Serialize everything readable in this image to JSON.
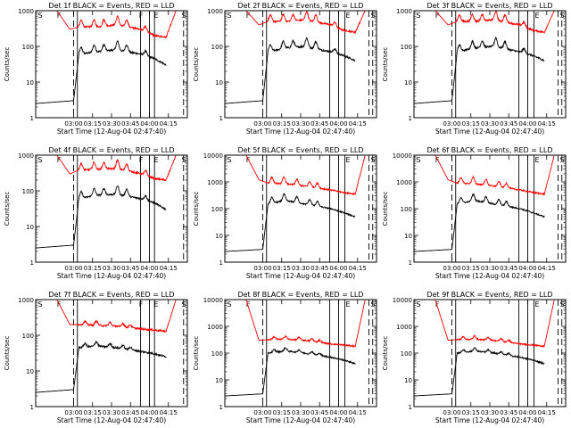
{
  "figure": {
    "ylabel": "Counts/sec",
    "xlabel": "Start Time (12-Aug-04 02:47:40)",
    "xticks": [
      "03:00",
      "03:15",
      "03:30",
      "03:45",
      "04:00",
      "04:15"
    ],
    "scale": "log",
    "colors": {
      "events": "#000000",
      "lld": "#ff0000",
      "axes": "#000000",
      "background": "#ffffff"
    }
  },
  "chart_data": [
    {
      "type": "line",
      "title": "Det 1f BLACK = Events, RED = LLD",
      "ylim": [
        1,
        1000
      ],
      "yticks": [
        "1",
        "10",
        "100",
        "1000"
      ],
      "flags": [
        "S",
        "F",
        "F",
        "E",
        "S"
      ],
      "markers": {
        "dashed": [
          "03:00",
          "04:27"
        ],
        "solid": [
          "03:03",
          "03:53",
          "04:00",
          "04:04"
        ]
      },
      "series": [
        {
          "name": "Events",
          "shape": "A",
          "values": [
            [
              2.5,
              2.5
            ],
            [
              3.0,
              3.0
            ],
            [
              3.07,
              60
            ],
            [
              3.3,
              70
            ],
            [
              3.55,
              80
            ],
            [
              3.9,
              60
            ],
            [
              4.07,
              45
            ],
            [
              4.22,
              30
            ]
          ]
        },
        {
          "name": "LLD",
          "shape": "A",
          "values": [
            [
              2.78,
              1000
            ],
            [
              2.95,
              300
            ],
            [
              3.07,
              350
            ],
            [
              3.3,
              350
            ],
            [
              3.55,
              400
            ],
            [
              3.9,
              300
            ],
            [
              4.07,
              200
            ],
            [
              4.22,
              180
            ],
            [
              4.35,
              1000
            ]
          ]
        }
      ]
    },
    {
      "type": "line",
      "title": "Det 2f BLACK = Events, RED = LLD",
      "ylim": [
        1,
        1000
      ],
      "yticks": [
        "1",
        "10",
        "100",
        "1000"
      ],
      "flags": [
        "S",
        "F",
        "E",
        "S"
      ],
      "markers": {
        "dashed": [
          "03:00",
          "04:24",
          "04:27"
        ],
        "solid": [
          "03:03",
          "03:53",
          "04:00",
          "04:05"
        ]
      },
      "series": [
        {
          "name": "Events",
          "shape": "A",
          "values": [
            [
              2.5,
              2.5
            ],
            [
              3.0,
              3.0
            ],
            [
              3.07,
              70
            ],
            [
              3.3,
              90
            ],
            [
              3.55,
              100
            ],
            [
              3.9,
              70
            ],
            [
              4.07,
              55
            ],
            [
              4.22,
              40
            ]
          ]
        },
        {
          "name": "LLD",
          "shape": "A",
          "values": [
            [
              2.78,
              1000
            ],
            [
              2.95,
              400
            ],
            [
              3.07,
              500
            ],
            [
              3.3,
              500
            ],
            [
              3.55,
              550
            ],
            [
              3.9,
              400
            ],
            [
              4.07,
              280
            ],
            [
              4.22,
              250
            ],
            [
              4.35,
              1000
            ]
          ]
        }
      ]
    },
    {
      "type": "line",
      "title": "Det 3f BLACK = Events, RED = LLD",
      "ylim": [
        1,
        1000
      ],
      "yticks": [
        "1",
        "10",
        "100",
        "1000"
      ],
      "flags": [
        "S",
        "F",
        "E",
        "S"
      ],
      "markers": {
        "dashed": [
          "03:00",
          "04:24",
          "04:27"
        ],
        "solid": [
          "03:03",
          "03:53",
          "04:00",
          "04:05"
        ]
      },
      "series": [
        {
          "name": "Events",
          "shape": "A",
          "values": [
            [
              2.5,
              2.5
            ],
            [
              3.0,
              3.0
            ],
            [
              3.07,
              70
            ],
            [
              3.3,
              90
            ],
            [
              3.55,
              100
            ],
            [
              3.9,
              70
            ],
            [
              4.07,
              55
            ],
            [
              4.22,
              40
            ]
          ]
        },
        {
          "name": "LLD",
          "shape": "A",
          "values": [
            [
              2.78,
              1000
            ],
            [
              2.95,
              400
            ],
            [
              3.07,
              500
            ],
            [
              3.3,
              500
            ],
            [
              3.55,
              550
            ],
            [
              3.9,
              400
            ],
            [
              4.07,
              280
            ],
            [
              4.22,
              250
            ],
            [
              4.35,
              1000
            ]
          ]
        }
      ]
    },
    {
      "type": "line",
      "title": "Det 4f BLACK = Events, RED = LLD",
      "ylim": [
        1,
        1000
      ],
      "yticks": [
        "1",
        "10",
        "100",
        "1000"
      ],
      "flags": [
        "S",
        "F",
        "F",
        "E",
        "S"
      ],
      "markers": {
        "dashed": [
          "03:00",
          "04:27"
        ],
        "solid": [
          "03:03",
          "03:53",
          "04:00",
          "04:04"
        ]
      },
      "series": [
        {
          "name": "Events",
          "shape": "A",
          "values": [
            [
              2.5,
              2.5
            ],
            [
              3.0,
              3.0
            ],
            [
              3.07,
              60
            ],
            [
              3.3,
              75
            ],
            [
              3.55,
              80
            ],
            [
              3.9,
              60
            ],
            [
              4.07,
              45
            ],
            [
              4.22,
              30
            ]
          ]
        },
        {
          "name": "LLD",
          "shape": "A",
          "values": [
            [
              2.78,
              1000
            ],
            [
              2.95,
              300
            ],
            [
              3.07,
              380
            ],
            [
              3.3,
              400
            ],
            [
              3.55,
              420
            ],
            [
              3.9,
              300
            ],
            [
              4.07,
              220
            ],
            [
              4.22,
              200
            ],
            [
              4.35,
              1000
            ]
          ]
        }
      ]
    },
    {
      "type": "line",
      "title": "Det 5f BLACK = Events, RED = LLD",
      "ylim": [
        1,
        10000
      ],
      "yticks": [
        "1",
        "10",
        "100",
        "1000",
        "10000"
      ],
      "flags": [
        "S",
        "F",
        "E",
        "S"
      ],
      "markers": {
        "dashed": [
          "03:00",
          "04:24",
          "04:27"
        ],
        "solid": [
          "03:03",
          "03:53",
          "04:00",
          "04:05"
        ]
      },
      "series": [
        {
          "name": "Events",
          "shape": "B",
          "values": [
            [
              2.5,
              2.5
            ],
            [
              3.0,
              3.0
            ],
            [
              3.07,
              150
            ],
            [
              3.3,
              200
            ],
            [
              3.55,
              150
            ],
            [
              3.9,
              100
            ],
            [
              4.07,
              70
            ],
            [
              4.22,
              50
            ]
          ]
        },
        {
          "name": "LLD",
          "shape": "B",
          "values": [
            [
              2.78,
              10000
            ],
            [
              2.95,
              1200
            ],
            [
              3.07,
              900
            ],
            [
              3.3,
              850
            ],
            [
              3.55,
              700
            ],
            [
              3.9,
              500
            ],
            [
              4.07,
              400
            ],
            [
              4.22,
              350
            ],
            [
              4.35,
              10000
            ]
          ]
        }
      ]
    },
    {
      "type": "line",
      "title": "Det 6f BLACK = Events, RED = LLD",
      "ylim": [
        1,
        10000
      ],
      "yticks": [
        "1",
        "10",
        "100",
        "1000",
        "10000"
      ],
      "flags": [
        "S",
        "F",
        "E",
        "S"
      ],
      "markers": {
        "dashed": [
          "03:00",
          "04:24",
          "04:27"
        ],
        "solid": [
          "03:03",
          "03:53",
          "04:00",
          "04:05"
        ]
      },
      "series": [
        {
          "name": "Events",
          "shape": "B",
          "values": [
            [
              2.5,
              2.5
            ],
            [
              3.0,
              3.0
            ],
            [
              3.07,
              150
            ],
            [
              3.3,
              200
            ],
            [
              3.55,
              150
            ],
            [
              3.9,
              100
            ],
            [
              4.07,
              70
            ],
            [
              4.22,
              50
            ]
          ]
        },
        {
          "name": "LLD",
          "shape": "B",
          "values": [
            [
              2.78,
              10000
            ],
            [
              2.95,
              1200
            ],
            [
              3.07,
              900
            ],
            [
              3.3,
              850
            ],
            [
              3.55,
              700
            ],
            [
              3.9,
              500
            ],
            [
              4.07,
              400
            ],
            [
              4.22,
              350
            ],
            [
              4.35,
              10000
            ]
          ]
        }
      ]
    },
    {
      "type": "line",
      "title": "Det 7f BLACK = Events, RED = LLD",
      "ylim": [
        1,
        1000
      ],
      "yticks": [
        "1",
        "10",
        "100",
        "1000"
      ],
      "flags": [
        "S",
        "F",
        "F",
        "E",
        "S"
      ],
      "markers": {
        "dashed": [
          "03:00",
          "04:27"
        ],
        "solid": [
          "03:03",
          "03:53",
          "04:00",
          "04:04"
        ]
      },
      "series": [
        {
          "name": "Events",
          "shape": "C",
          "values": [
            [
              2.5,
              2.5
            ],
            [
              3.0,
              3.0
            ],
            [
              3.07,
              45
            ],
            [
              3.3,
              50
            ],
            [
              3.55,
              45
            ],
            [
              3.9,
              35
            ],
            [
              4.07,
              30
            ],
            [
              4.22,
              25
            ]
          ]
        },
        {
          "name": "LLD",
          "shape": "C",
          "values": [
            [
              2.78,
              1000
            ],
            [
              2.95,
              200
            ],
            [
              3.07,
              200
            ],
            [
              3.3,
              190
            ],
            [
              3.55,
              180
            ],
            [
              3.9,
              150
            ],
            [
              4.07,
              140
            ],
            [
              4.22,
              130
            ],
            [
              4.35,
              1000
            ]
          ]
        }
      ]
    },
    {
      "type": "line",
      "title": "Det 8f BLACK = Events, RED = LLD",
      "ylim": [
        1,
        10000
      ],
      "yticks": [
        "1",
        "10",
        "100",
        "1000",
        "10000"
      ],
      "flags": [
        "S",
        "F",
        "E",
        "S"
      ],
      "markers": {
        "dashed": [
          "03:00",
          "04:24",
          "04:27"
        ],
        "solid": [
          "03:03",
          "03:53",
          "04:00",
          "04:05"
        ]
      },
      "series": [
        {
          "name": "Events",
          "shape": "C",
          "values": [
            [
              2.5,
              2.5
            ],
            [
              3.0,
              3.0
            ],
            [
              3.07,
              100
            ],
            [
              3.3,
              120
            ],
            [
              3.55,
              100
            ],
            [
              3.9,
              70
            ],
            [
              4.07,
              55
            ],
            [
              4.22,
              40
            ]
          ]
        },
        {
          "name": "LLD",
          "shape": "C",
          "values": [
            [
              2.78,
              10000
            ],
            [
              2.95,
              300
            ],
            [
              3.07,
              320
            ],
            [
              3.3,
              330
            ],
            [
              3.55,
              300
            ],
            [
              3.9,
              220
            ],
            [
              4.07,
              200
            ],
            [
              4.22,
              180
            ],
            [
              4.35,
              10000
            ]
          ]
        }
      ]
    },
    {
      "type": "line",
      "title": "Det 9f BLACK = Events, RED = LLD",
      "ylim": [
        1,
        10000
      ],
      "yticks": [
        "1",
        "10",
        "100",
        "1000",
        "10000"
      ],
      "flags": [
        "S",
        "F",
        "E",
        "S"
      ],
      "markers": {
        "dashed": [
          "03:00",
          "04:24",
          "04:27"
        ],
        "solid": [
          "03:03",
          "03:53",
          "04:00",
          "04:05"
        ]
      },
      "series": [
        {
          "name": "Events",
          "shape": "C",
          "values": [
            [
              2.5,
              2.5
            ],
            [
              3.0,
              3.0
            ],
            [
              3.07,
              100
            ],
            [
              3.3,
              120
            ],
            [
              3.55,
              100
            ],
            [
              3.9,
              70
            ],
            [
              4.07,
              55
            ],
            [
              4.22,
              40
            ]
          ]
        },
        {
          "name": "LLD",
          "shape": "C",
          "values": [
            [
              2.78,
              10000
            ],
            [
              2.95,
              300
            ],
            [
              3.07,
              320
            ],
            [
              3.3,
              330
            ],
            [
              3.55,
              300
            ],
            [
              3.9,
              220
            ],
            [
              4.07,
              200
            ],
            [
              4.22,
              180
            ],
            [
              4.35,
              10000
            ]
          ]
        }
      ]
    }
  ]
}
